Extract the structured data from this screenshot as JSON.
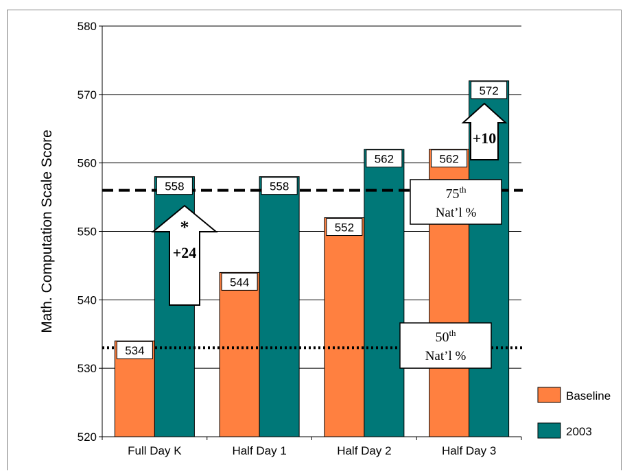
{
  "chart_data": {
    "type": "bar",
    "title": "",
    "xlabel": "",
    "ylabel": "Math. Computation Scale Score",
    "ylim": [
      520,
      580
    ],
    "yticks": [
      520,
      530,
      540,
      550,
      560,
      570,
      580
    ],
    "grid": true,
    "categories": [
      "Full Day K",
      "Half Day 1",
      "Half Day 2",
      "Half Day 3"
    ],
    "series": [
      {
        "name": "Baseline",
        "color": "#ff8040",
        "values": [
          534,
          544,
          552,
          562
        ]
      },
      {
        "name": "2003",
        "color": "#007878",
        "values": [
          558,
          558,
          562,
          572
        ]
      }
    ],
    "value_labels": {
      "Baseline": [
        "534",
        "544",
        "552",
        "562"
      ],
      "2003": [
        "558",
        "558",
        "562",
        "572"
      ]
    },
    "reference_lines": [
      {
        "value": 556,
        "style": "dashed",
        "label_sup": "th",
        "label_num": "75",
        "label_text": "Nat’l %"
      },
      {
        "value": 533,
        "style": "dotted",
        "label_sup": "th",
        "label_num": "50",
        "label_text": "Nat’l %"
      }
    ],
    "annotations": [
      {
        "category": "Full Day K",
        "arrow_label": "+24",
        "note": "*"
      },
      {
        "category": "Half Day 3",
        "arrow_label": "+10",
        "note": ""
      }
    ],
    "legend": {
      "position": "right",
      "entries": [
        "Baseline",
        "2003"
      ]
    }
  }
}
